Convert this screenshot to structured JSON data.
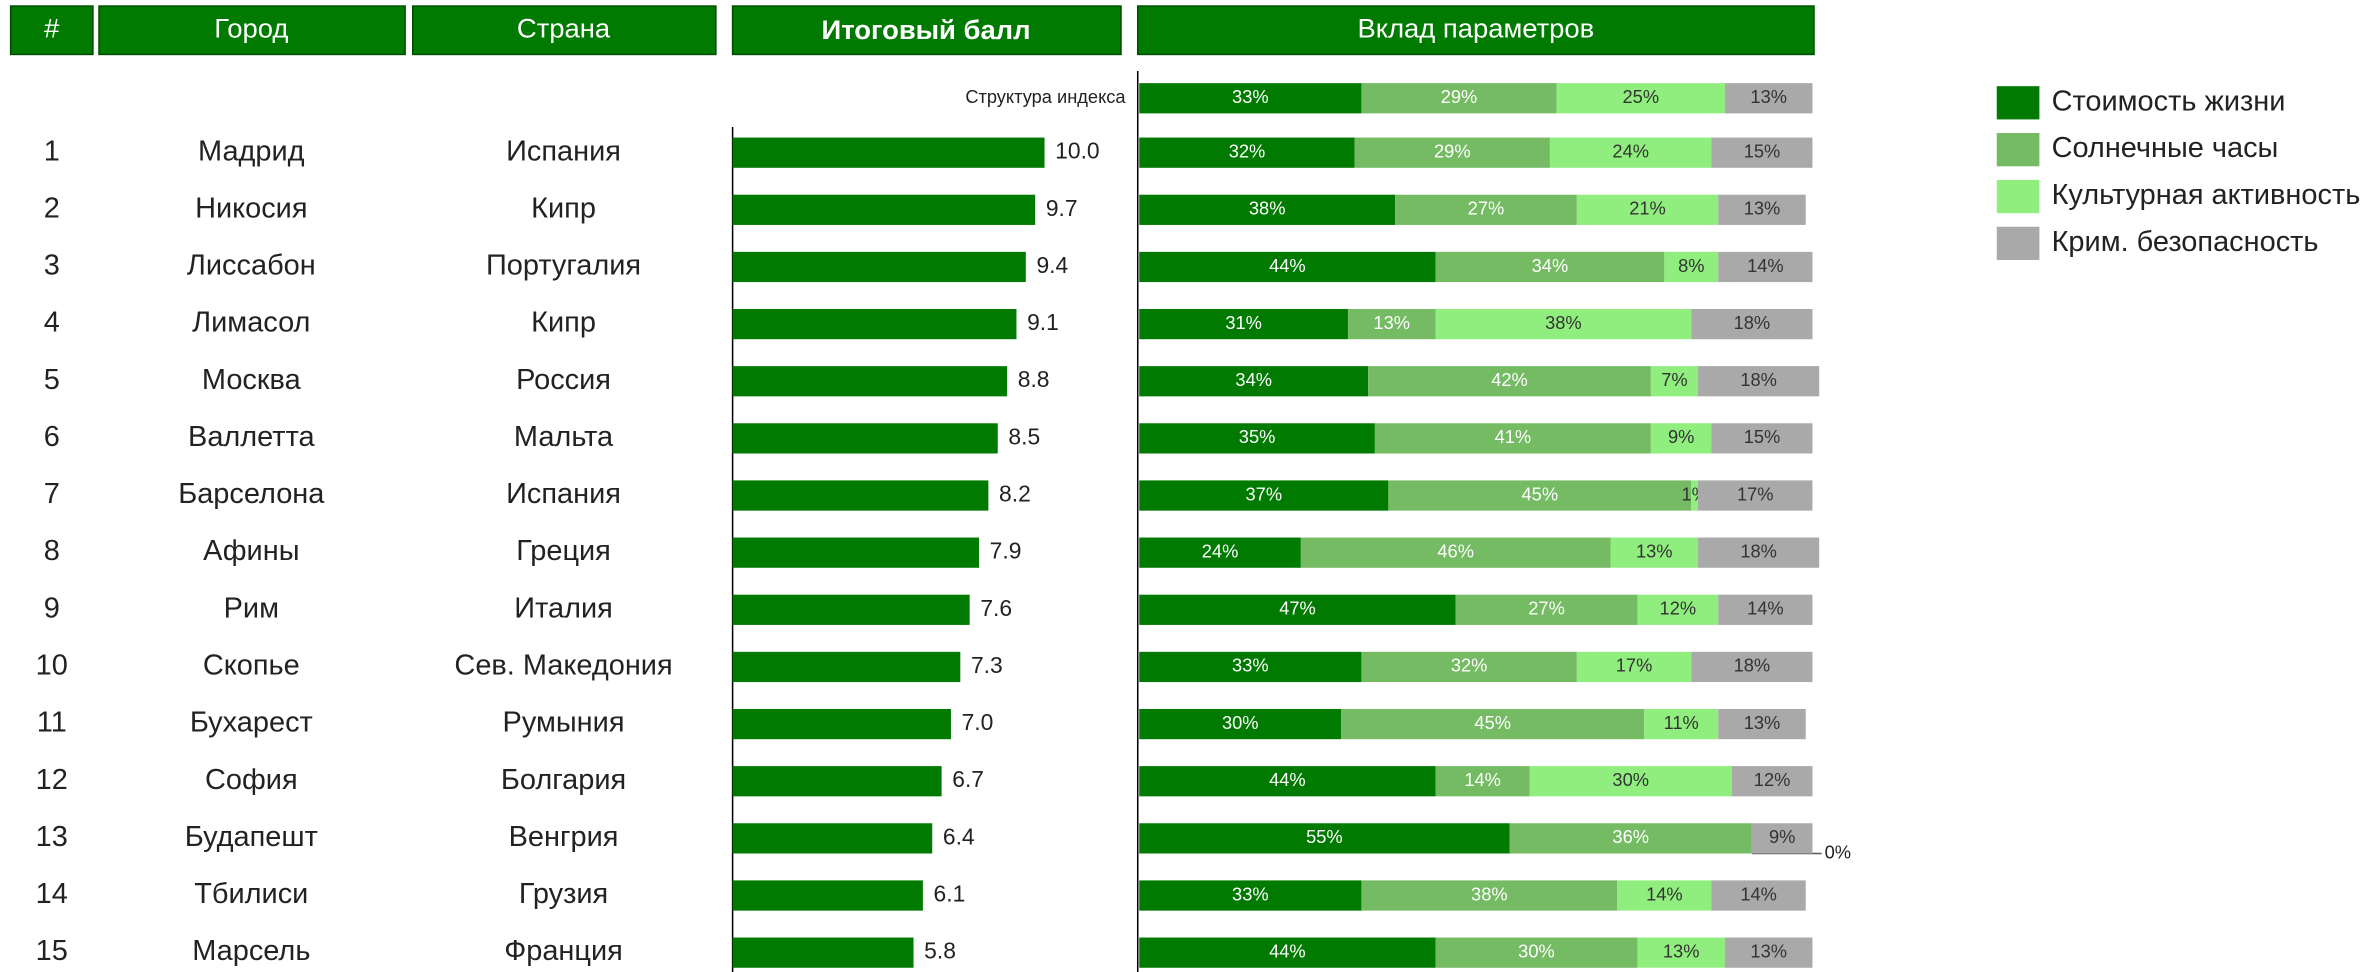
{
  "table": {
    "header": [
      "#",
      "Город",
      "Страна"
    ],
    "rows": [
      [
        1,
        "Мадрид",
        "Испания"
      ],
      [
        2,
        "Никосия",
        "Кипр"
      ],
      [
        3,
        "Лиссабон",
        "Португалия"
      ],
      [
        4,
        "Лимасол",
        "Кипр"
      ],
      [
        5,
        "Москва",
        "Россия"
      ],
      [
        6,
        "Валлетта",
        "Мальта"
      ],
      [
        7,
        "Барселона",
        "Испания"
      ],
      [
        8,
        "Афины",
        "Греция"
      ],
      [
        9,
        "Рим",
        "Италия"
      ],
      [
        10,
        "Скопье",
        "Сев. Македония"
      ],
      [
        11,
        "Бухарест",
        "Румыния"
      ],
      [
        12,
        "София",
        "Болгария"
      ],
      [
        13,
        "Будапешт",
        "Венгрия"
      ],
      [
        14,
        "Тбилиси",
        "Грузия"
      ],
      [
        15,
        "Марсель",
        "Франция"
      ]
    ]
  },
  "chart_data": [
    {
      "type": "hbar",
      "title": "Итоговый балл",
      "color": "#007a00",
      "values": [
        10.0,
        9.7,
        9.4,
        9.1,
        8.8,
        8.5,
        8.2,
        7.9,
        7.6,
        7.3,
        7.0,
        6.7,
        6.4,
        6.1,
        5.8
      ],
      "value_labels": [
        "10.0",
        "9.7",
        "9.4",
        "9.1",
        "8.8",
        "8.5",
        "8.2",
        "7.9",
        "7.6",
        "7.3",
        "7.0",
        "6.7",
        "6.4",
        "6.1",
        "5.8"
      ],
      "xlim": [
        0,
        12.5
      ]
    },
    {
      "type": "stacked_hbar",
      "title": "Вклад параметров",
      "legend": "right",
      "xlim": [
        0,
        100
      ],
      "categories": [
        "Структура индекса",
        null,
        null,
        null,
        null,
        null,
        null,
        null,
        null,
        null,
        null,
        null,
        null,
        null,
        null,
        null
      ],
      "series": [
        {
          "name": "Стоимость жизни",
          "color": "#007a00",
          "values": [
            33,
            32,
            38,
            44,
            31,
            34,
            35,
            37,
            24,
            47,
            33,
            30,
            44,
            55,
            33,
            44
          ],
          "value_labels": [
            "33%",
            "32%",
            "38%",
            "44%",
            "31%",
            "34%",
            "35%",
            "37%",
            "24%",
            "47%",
            "33%",
            "30%",
            "44%",
            "55%",
            "33%",
            "44%"
          ]
        },
        {
          "name": "Солнечные часы",
          "color": "#74bb63",
          "values": [
            29,
            29,
            27,
            34,
            13,
            42,
            41,
            45,
            46,
            27,
            32,
            45,
            14,
            36,
            38,
            30
          ],
          "value_labels": [
            "29%",
            "29%",
            "27%",
            "34%",
            "13%",
            "42%",
            "41%",
            "45%",
            "46%",
            "27%",
            "32%",
            "45%",
            "14%",
            "36%",
            "38%",
            "30%"
          ]
        },
        {
          "name": "Культурная активность",
          "color": "#90ee7e",
          "values": [
            25,
            24,
            21,
            8,
            38,
            7,
            9,
            1,
            13,
            12,
            17,
            11,
            30,
            0,
            14,
            13
          ],
          "value_labels": [
            "25%",
            "24%",
            "21%",
            "8%",
            "38%",
            "7%",
            "9%",
            "1%",
            "13%",
            "12%",
            "17%",
            "11%",
            "30%",
            "0%",
            "14%",
            "13%"
          ]
        },
        {
          "name": "Крим. безопасность",
          "color": "#a9a9a9",
          "values": [
            13,
            15,
            13,
            14,
            18,
            18,
            15,
            17,
            18,
            14,
            18,
            13,
            12,
            9,
            14,
            13
          ],
          "value_labels": [
            "13%",
            "15%",
            "13%",
            "14%",
            "18%",
            "18%",
            "15%",
            "17%",
            "18%",
            "14%",
            "18%",
            "13%",
            "12%",
            "9%",
            "14%",
            "13%"
          ]
        }
      ]
    }
  ]
}
